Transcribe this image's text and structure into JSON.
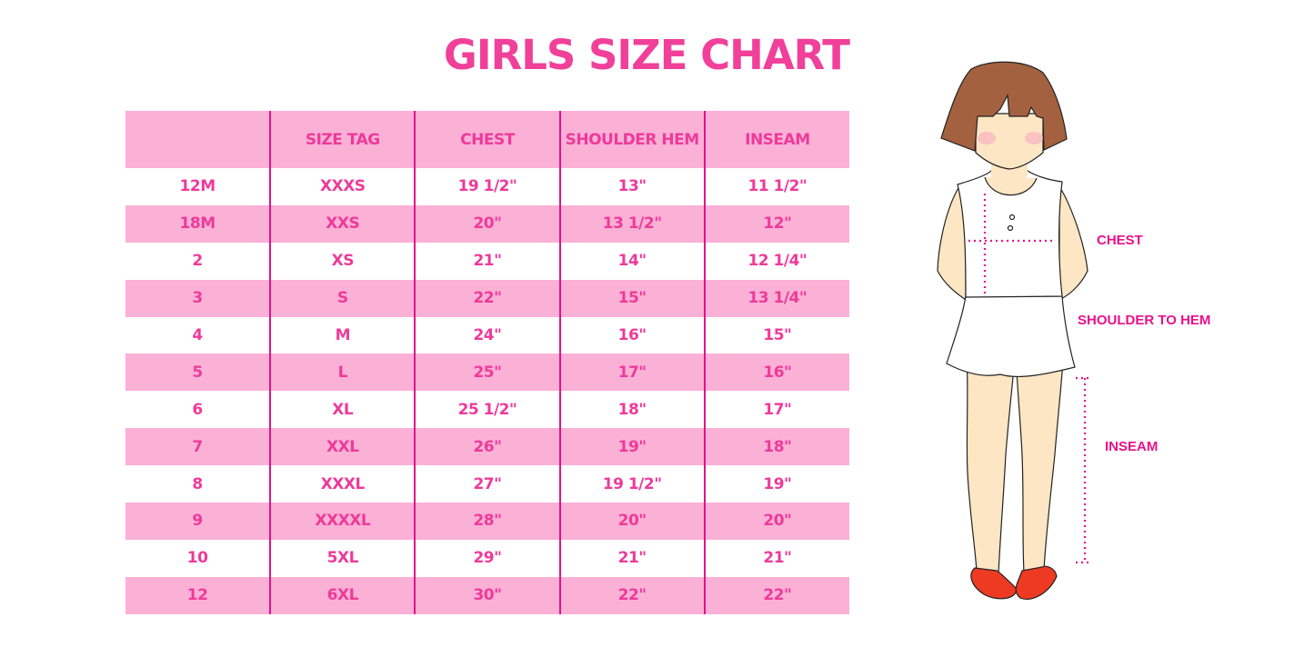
{
  "title": "GIRLS SIZE CHART",
  "table": {
    "headers": [
      "",
      "SIZE TAG",
      "CHEST",
      "SHOULDER HEM",
      "INSEAM"
    ],
    "rows": [
      [
        "12M",
        "XXXS",
        "19 1/2\"",
        "13\"",
        "11 1/2\""
      ],
      [
        "18M",
        "XXS",
        "20\"",
        "13 1/2\"",
        "12\""
      ],
      [
        "2",
        "XS",
        "21\"",
        "14\"",
        "12 1/4\""
      ],
      [
        "3",
        "S",
        "22\"",
        "15\"",
        "13 1/4\""
      ],
      [
        "4",
        "M",
        "24\"",
        "16\"",
        "15\""
      ],
      [
        "5",
        "L",
        "25\"",
        "17\"",
        "16\""
      ],
      [
        "6",
        "XL",
        "25 1/2\"",
        "18\"",
        "17\""
      ],
      [
        "7",
        "XXL",
        "26\"",
        "19\"",
        "18\""
      ],
      [
        "8",
        "XXXL",
        "27\"",
        "19 1/2\"",
        "19\""
      ],
      [
        "9",
        "XXXXL",
        "28\"",
        "20\"",
        "20\""
      ],
      [
        "10",
        "5XL",
        "29\"",
        "21\"",
        "21\""
      ],
      [
        "12",
        "6XL",
        "30\"",
        "22\"",
        "22\""
      ]
    ]
  },
  "figure": {
    "labels": {
      "chest": "CHEST",
      "shoulder_to_hem": "SHOULDER TO HEM",
      "inseam": "INSEAM"
    }
  },
  "colors": {
    "title": "#f0409a",
    "band": "#fbb0d6",
    "text": "#ee3a9a",
    "divider": "#e0138c",
    "measure": "#e8118a"
  }
}
